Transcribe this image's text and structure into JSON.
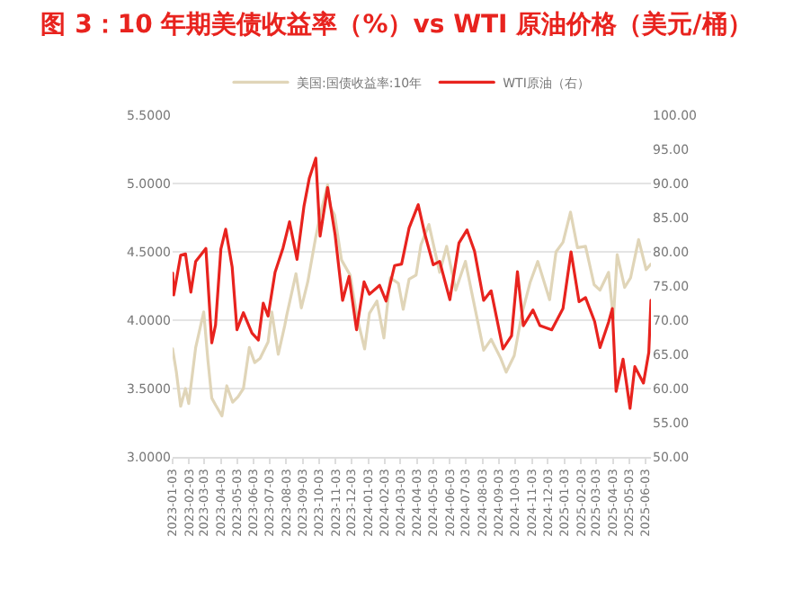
{
  "chart_data": {
    "type": "line",
    "title": "图 3：10 年期美债收益率（%）vs WTI 原油价格（美元/桶）",
    "xlim": [
      "2023-01-03",
      "2025-06-13"
    ],
    "xticks": [
      "2023-01-03",
      "2023-02-03",
      "2023-03-03",
      "2023-04-03",
      "2023-05-03",
      "2023-06-03",
      "2023-07-03",
      "2023-08-03",
      "2023-09-03",
      "2023-10-03",
      "2023-11-03",
      "2023-12-03",
      "2024-01-03",
      "2024-02-03",
      "2024-03-03",
      "2024-04-03",
      "2024-05-03",
      "2024-06-03",
      "2024-07-03",
      "2024-08-03",
      "2024-09-03",
      "2024-10-03",
      "2024-11-03",
      "2024-12-03",
      "2025-01-03",
      "2025-02-03",
      "2025-03-03",
      "2025-04-03",
      "2025-05-03",
      "2025-06-03"
    ],
    "ylim": [
      3,
      5.5
    ],
    "yticks": [
      {
        "value": 3,
        "label": "3.0000"
      },
      {
        "value": 3.5,
        "label": "3.5000"
      },
      {
        "value": 4,
        "label": "4.0000"
      },
      {
        "value": 4.5,
        "label": "4.5000"
      },
      {
        "value": 5,
        "label": "5.0000"
      },
      {
        "value": 5.5,
        "label": "5.5000"
      }
    ],
    "y2lim": [
      50,
      100
    ],
    "y2ticks": [
      {
        "value": 50,
        "label": "50.00"
      },
      {
        "value": 55,
        "label": "55.00"
      },
      {
        "value": 60,
        "label": "60.00"
      },
      {
        "value": 65,
        "label": "65.00"
      },
      {
        "value": 70,
        "label": "70.00"
      },
      {
        "value": 75,
        "label": "75.00"
      },
      {
        "value": 80,
        "label": "80.00"
      },
      {
        "value": 85,
        "label": "85.00"
      },
      {
        "value": 90,
        "label": "90.00"
      },
      {
        "value": 95,
        "label": "95.00"
      },
      {
        "value": 100,
        "label": "100.00"
      }
    ],
    "grid": "y",
    "legend": "top",
    "line_style": "solid",
    "series": [
      {
        "name": "美国:国债收益率:10年",
        "color": "#e0d5b8",
        "x": [
          "2023-01-03",
          "2023-01-10",
          "2023-01-18",
          "2023-01-27",
          "2023-02-02",
          "2023-02-15",
          "2023-03-02",
          "2023-03-10",
          "2023-03-17",
          "2023-03-24",
          "2023-04-05",
          "2023-04-14",
          "2023-04-25",
          "2023-05-05",
          "2023-05-15",
          "2023-05-26",
          "2023-06-05",
          "2023-06-15",
          "2023-06-30",
          "2023-07-07",
          "2023-07-19",
          "2023-07-31",
          "2023-08-04",
          "2023-08-21",
          "2023-08-31",
          "2023-09-12",
          "2023-09-27",
          "2023-10-06",
          "2023-10-19",
          "2023-10-24",
          "2023-11-01",
          "2023-11-14",
          "2023-11-30",
          "2023-12-13",
          "2023-12-27",
          "2024-01-05",
          "2024-01-19",
          "2024-02-01",
          "2024-02-13",
          "2024-02-28",
          "2024-03-08",
          "2024-03-19",
          "2024-04-01",
          "2024-04-10",
          "2024-04-25",
          "2024-05-15",
          "2024-05-28",
          "2024-06-14",
          "2024-07-02",
          "2024-07-16",
          "2024-08-05",
          "2024-08-19",
          "2024-09-06",
          "2024-09-16",
          "2024-10-01",
          "2024-10-15",
          "2024-10-31",
          "2024-11-14",
          "2024-12-06",
          "2024-12-18",
          "2024-12-31",
          "2025-01-14",
          "2025-01-27",
          "2025-02-11",
          "2025-02-27",
          "2025-03-10",
          "2025-03-26",
          "2025-04-04",
          "2025-04-11",
          "2025-04-25",
          "2025-05-06",
          "2025-05-21",
          "2025-06-04",
          "2025-06-13"
        ],
        "values": [
          3.79,
          3.62,
          3.37,
          3.5,
          3.39,
          3.8,
          4.06,
          3.7,
          3.43,
          3.38,
          3.3,
          3.52,
          3.4,
          3.44,
          3.5,
          3.8,
          3.69,
          3.72,
          3.84,
          4.06,
          3.75,
          3.96,
          4.04,
          4.34,
          4.09,
          4.28,
          4.61,
          4.78,
          4.99,
          4.83,
          4.77,
          4.44,
          4.33,
          4.02,
          3.79,
          4.05,
          4.14,
          3.87,
          4.31,
          4.27,
          4.08,
          4.3,
          4.33,
          4.55,
          4.7,
          4.35,
          4.54,
          4.22,
          4.43,
          4.16,
          3.78,
          3.86,
          3.72,
          3.62,
          3.74,
          4.04,
          4.28,
          4.43,
          4.15,
          4.5,
          4.57,
          4.79,
          4.53,
          4.54,
          4.26,
          4.22,
          4.35,
          4.01,
          4.48,
          4.24,
          4.31,
          4.59,
          4.37,
          4.41
        ]
      },
      {
        "name": "WTI原油（右）",
        "color": "#e8231e",
        "axis": "y2",
        "x": [
          "2023-01-03",
          "2023-01-05",
          "2023-01-18",
          "2023-01-27",
          "2023-02-06",
          "2023-02-15",
          "2023-03-06",
          "2023-03-17",
          "2023-03-24",
          "2023-04-03",
          "2023-04-12",
          "2023-04-24",
          "2023-05-03",
          "2023-05-15",
          "2023-05-31",
          "2023-06-12",
          "2023-06-21",
          "2023-06-30",
          "2023-07-13",
          "2023-07-28",
          "2023-08-09",
          "2023-08-23",
          "2023-09-05",
          "2023-09-15",
          "2023-09-27",
          "2023-10-05",
          "2023-10-19",
          "2023-11-02",
          "2023-11-16",
          "2023-11-28",
          "2023-12-12",
          "2023-12-26",
          "2024-01-05",
          "2024-01-24",
          "2024-02-05",
          "2024-02-21",
          "2024-03-05",
          "2024-03-19",
          "2024-04-05",
          "2024-04-17",
          "2024-05-03",
          "2024-05-15",
          "2024-06-03",
          "2024-06-20",
          "2024-07-05",
          "2024-07-19",
          "2024-08-05",
          "2024-08-19",
          "2024-09-10",
          "2024-09-26",
          "2024-10-07",
          "2024-10-18",
          "2024-11-05",
          "2024-11-18",
          "2024-12-10",
          "2024-12-31",
          "2025-01-15",
          "2025-01-30",
          "2025-02-11",
          "2025-02-28",
          "2025-03-10",
          "2025-03-26",
          "2025-04-02",
          "2025-04-09",
          "2025-04-22",
          "2025-05-05",
          "2025-05-14",
          "2025-05-30",
          "2025-06-09",
          "2025-06-13"
        ],
        "values": [
          76.9,
          73.7,
          79.5,
          79.7,
          74.1,
          78.6,
          80.5,
          66.7,
          69.3,
          80.4,
          83.3,
          77.8,
          68.6,
          71.1,
          68.1,
          67.1,
          72.5,
          70.6,
          77,
          80.6,
          84.4,
          78.9,
          86.7,
          90.8,
          93.7,
          82.3,
          89.4,
          82.5,
          72.9,
          76.4,
          68.6,
          75.6,
          73.8,
          75.1,
          72.8,
          78,
          78.2,
          83.5,
          86.9,
          82.7,
          78.1,
          78.6,
          73,
          81.3,
          83.2,
          80.1,
          72.9,
          74.3,
          65.8,
          67.7,
          77.1,
          69.2,
          71.5,
          69.2,
          68.6,
          71.7,
          80,
          72.7,
          73.3,
          69.8,
          66,
          69.7,
          71.7,
          59.6,
          64.3,
          57.1,
          63.2,
          60.8,
          65.3,
          72.9
        ]
      }
    ]
  }
}
